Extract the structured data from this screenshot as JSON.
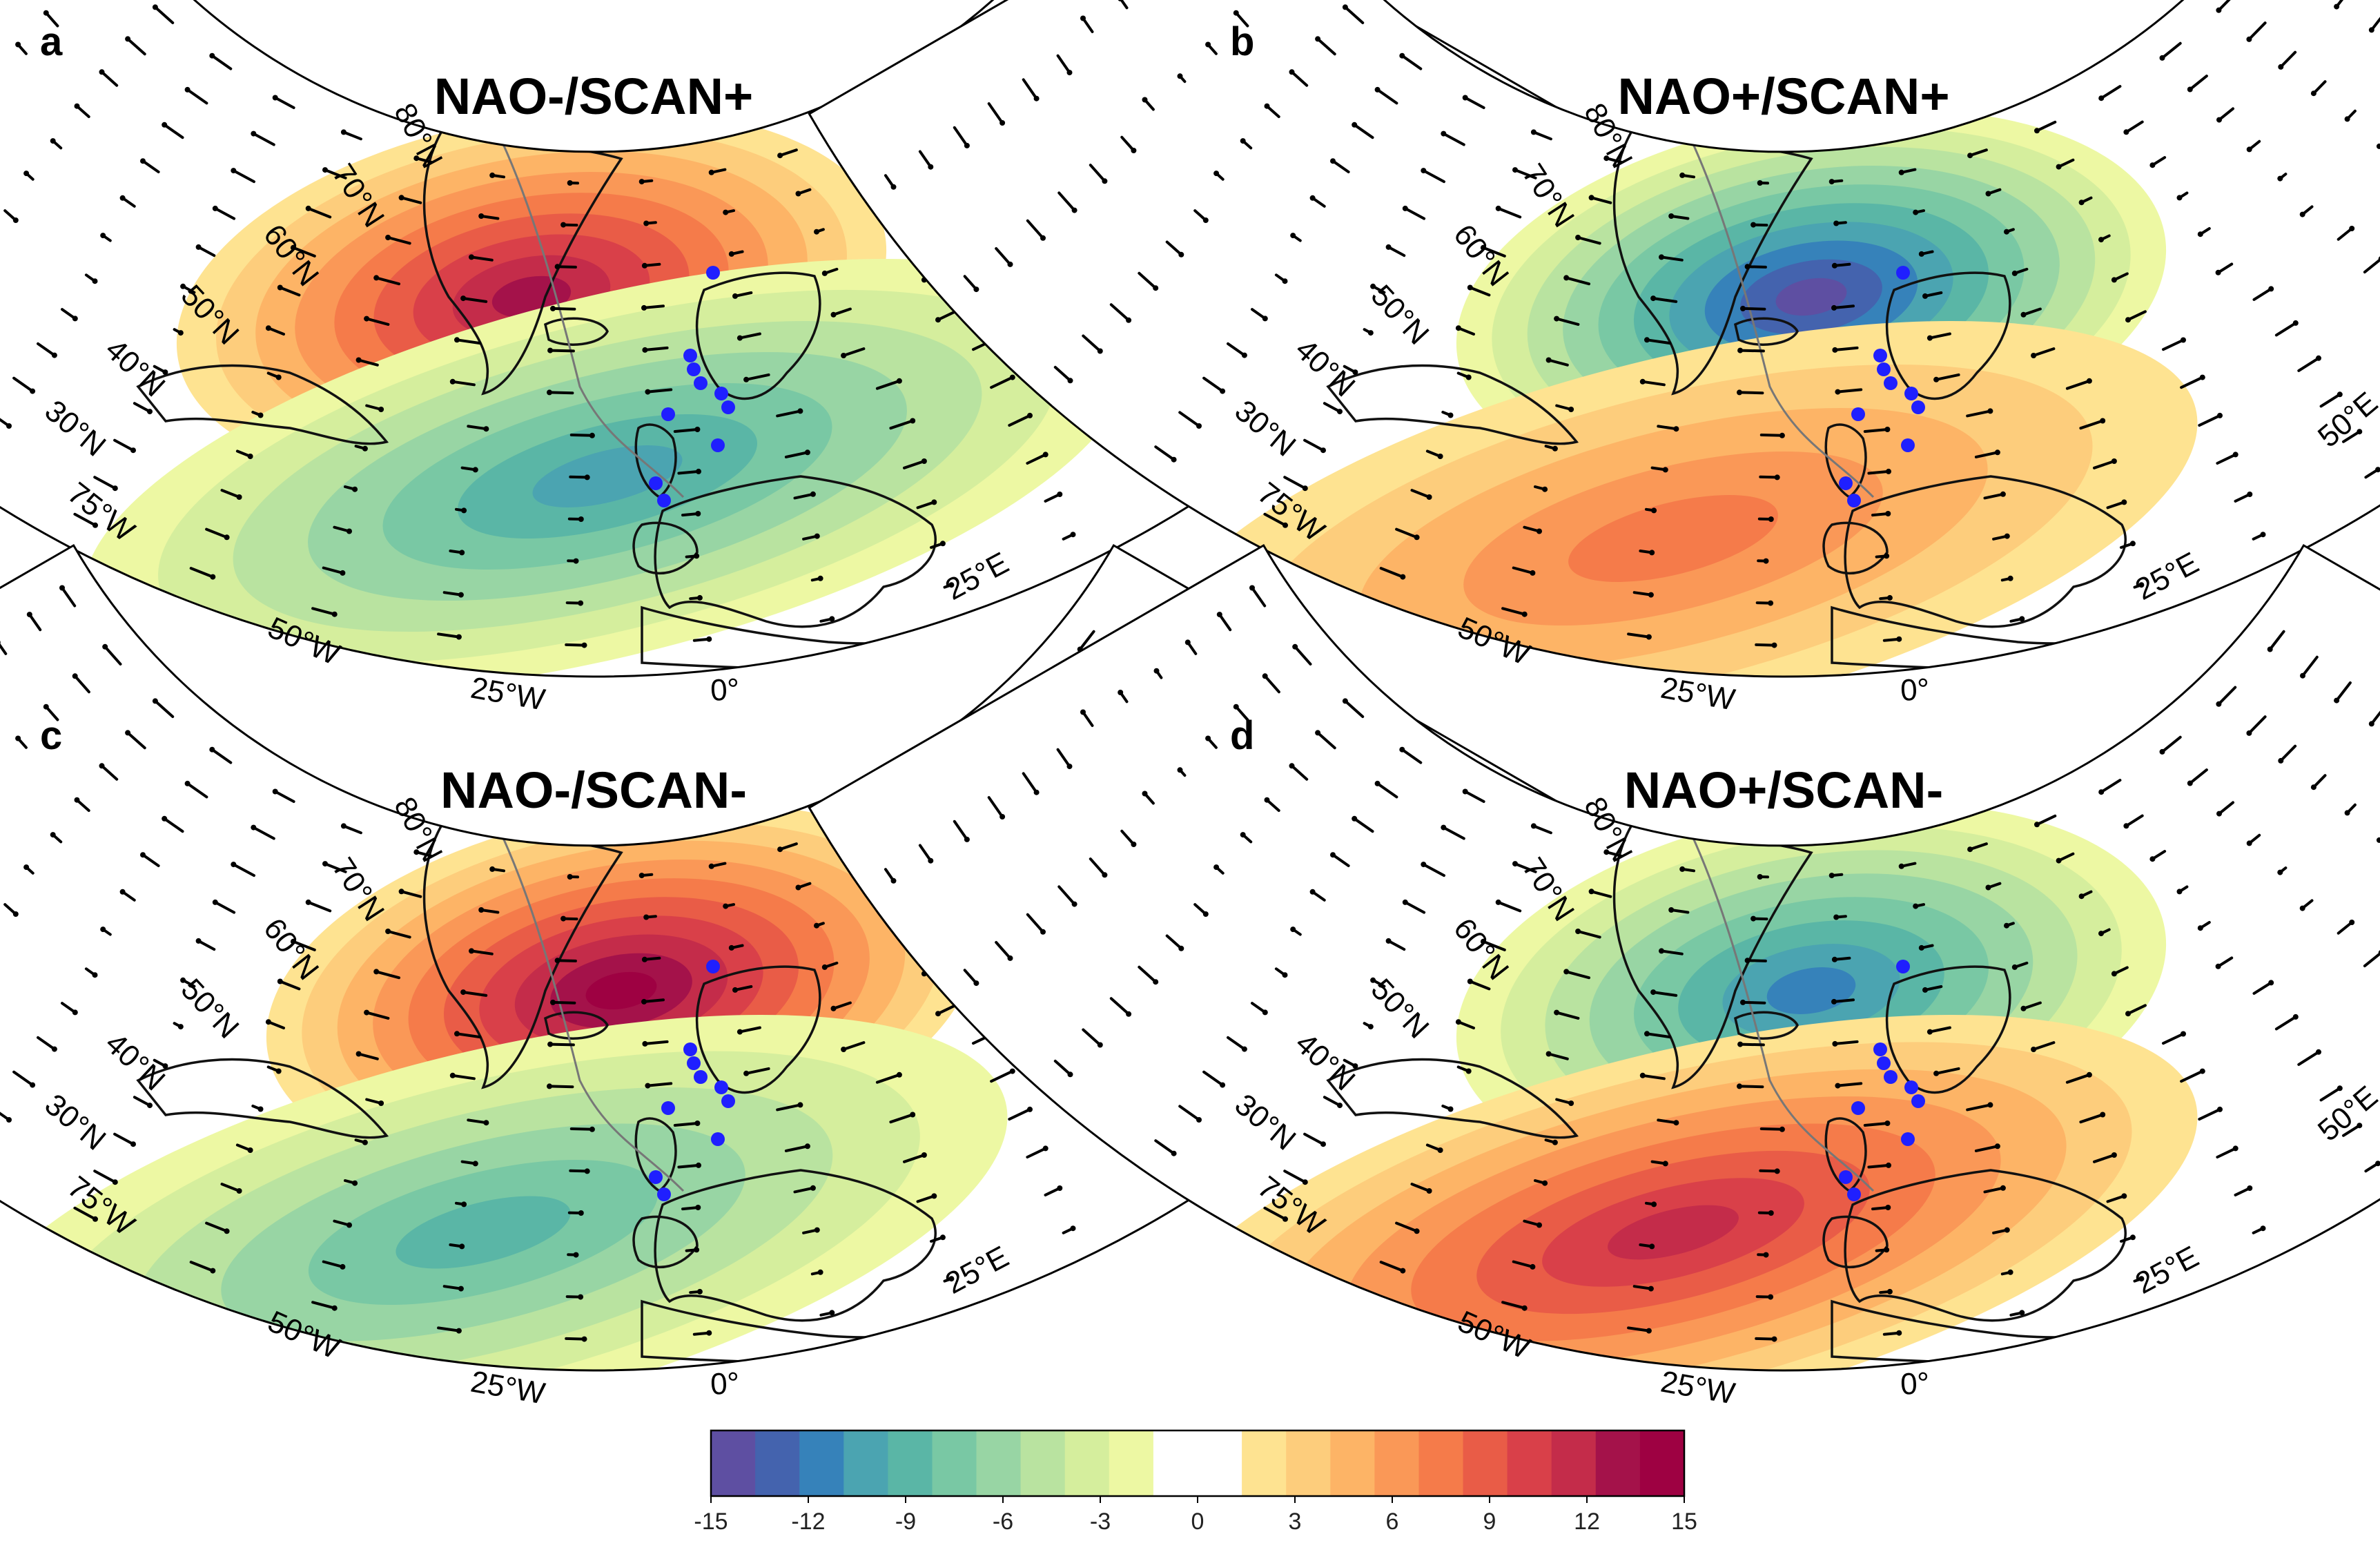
{
  "panels": [
    {
      "letter": "a",
      "title": "NAO-/SCAN+",
      "north": "+",
      "south": "-",
      "north_strength": 0.85,
      "south_strength": 0.65
    },
    {
      "letter": "b",
      "title": "NAO+/SCAN+",
      "north": "-",
      "south": "+",
      "north_strength": 0.95,
      "south_strength": 0.45
    },
    {
      "letter": "c",
      "title": "NAO-/SCAN-",
      "north": "+",
      "south": "-",
      "north_strength": 1.0,
      "south_strength": 0.55
    },
    {
      "letter": "d",
      "title": "NAO+/SCAN-",
      "north": "-",
      "south": "+",
      "north_strength": 0.75,
      "south_strength": 0.75
    }
  ],
  "axis_labels": {
    "latitudes": [
      "30°N",
      "40°N",
      "50°N",
      "60°N",
      "70°N",
      "80°N"
    ],
    "west_longitudes": [
      "75°W",
      "50°W",
      "25°W",
      "0°"
    ],
    "east_longitudes": [
      "25°E",
      "50°E"
    ]
  },
  "colorbar": {
    "ticks": [
      "-15",
      "-12",
      "-9",
      "-6",
      "-3",
      "0",
      "3",
      "6",
      "9",
      "12",
      "15"
    ],
    "colors": [
      "#5e4fa2",
      "#4463ae",
      "#3682ba",
      "#4ba4b1",
      "#5ab6a6",
      "#79c8a4",
      "#98d5a4",
      "#b9e3a0",
      "#d5ee9d",
      "#edf8a3",
      "#ffffff",
      "#ffffff",
      "#fee391",
      "#fdcd7c",
      "#fdb466",
      "#fa9857",
      "#f57b4a",
      "#e95c47",
      "#d94049",
      "#c42c4a",
      "#a4124a",
      "#9e0142"
    ]
  },
  "colors": {
    "dots": "#1f1fff",
    "land": "#111111",
    "land_secondary": "#777777"
  }
}
